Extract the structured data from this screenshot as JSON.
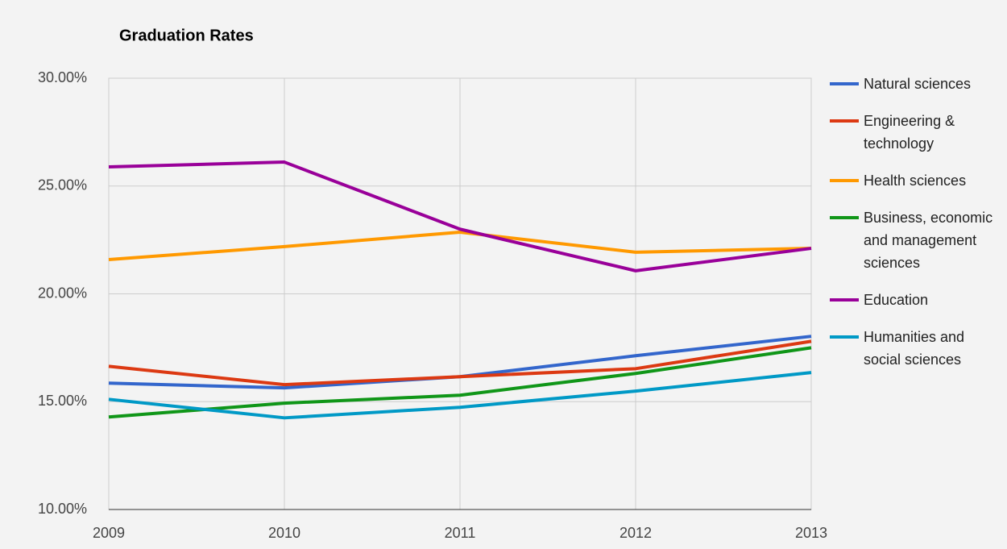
{
  "chart_data": {
    "type": "line",
    "title": "Graduation Rates",
    "x": [
      2009,
      2010,
      2011,
      2012,
      2013
    ],
    "xlim": [
      2009,
      2013
    ],
    "xticks": [
      2009,
      2010,
      2011,
      2012,
      2013
    ],
    "ylim": [
      10,
      30
    ],
    "yticks": [
      {
        "value": 10,
        "label": "10.00%"
      },
      {
        "value": 15,
        "label": "15.00%"
      },
      {
        "value": 20,
        "label": "20.00%"
      },
      {
        "value": 25,
        "label": "25.00%"
      },
      {
        "value": 30,
        "label": "30.00%"
      }
    ],
    "grid": true,
    "legend": "right",
    "series": [
      {
        "name": "Natural sciences",
        "color": "#3366cc",
        "values": [
          15.86,
          15.64,
          16.16,
          17.13,
          18.03
        ]
      },
      {
        "name": "Engineering & technology",
        "color": "#dc3912",
        "values": [
          16.64,
          15.79,
          16.16,
          16.53,
          17.8
        ]
      },
      {
        "name": "Health sciences",
        "color": "#ff9900",
        "values": [
          21.59,
          22.19,
          22.86,
          21.93,
          22.11
        ]
      },
      {
        "name": "Business, economic and management sciences",
        "color": "#109618",
        "values": [
          14.29,
          14.93,
          15.3,
          16.31,
          17.5
        ]
      },
      {
        "name": "Education",
        "color": "#990099",
        "values": [
          25.89,
          26.11,
          23.0,
          21.07,
          22.11
        ]
      },
      {
        "name": "Humanities and social sciences",
        "color": "#0099c6",
        "values": [
          15.11,
          14.25,
          14.74,
          15.49,
          16.35
        ]
      }
    ]
  }
}
